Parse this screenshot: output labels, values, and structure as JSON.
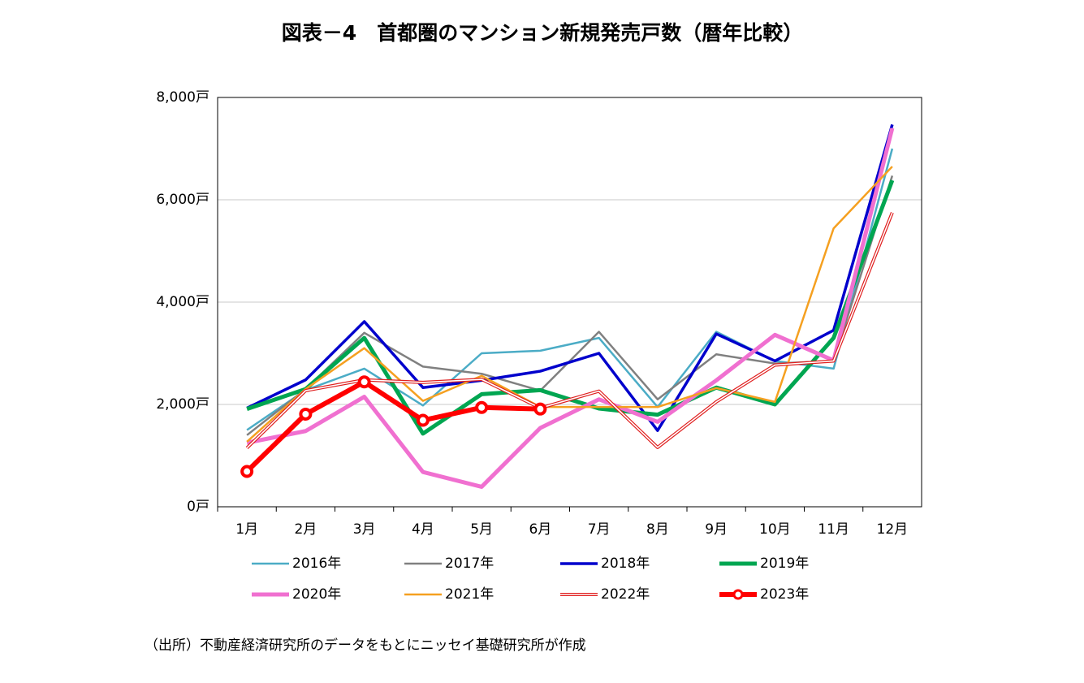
{
  "chart_data": {
    "type": "line",
    "title": "図表－4　首都圏のマンション新規発売戸数（暦年比較）",
    "note": "（出所）不動産経済研究所のデータをもとにニッセイ基礎研究所が作成",
    "categories": [
      "1月",
      "2月",
      "3月",
      "4月",
      "5月",
      "6月",
      "7月",
      "8月",
      "9月",
      "10月",
      "11月",
      "12月"
    ],
    "ylim": [
      0,
      8000
    ],
    "yticks": [
      {
        "value": 0,
        "label": "0戸"
      },
      {
        "value": 2000,
        "label": "2,000戸"
      },
      {
        "value": 4000,
        "label": "4,000戸"
      },
      {
        "value": 6000,
        "label": "6,000戸"
      },
      {
        "value": 8000,
        "label": "8,000戸"
      }
    ],
    "grid": true,
    "series": [
      {
        "name": "2016年",
        "color": "#4bacc6",
        "width": 2.5,
        "values": [
          1500,
          2280,
          2700,
          1980,
          3000,
          3050,
          3300,
          1950,
          3420,
          2850,
          2700,
          7000
        ]
      },
      {
        "name": "2017年",
        "color": "#808080",
        "width": 2.5,
        "values": [
          1400,
          2300,
          3400,
          2740,
          2600,
          2270,
          3420,
          2100,
          2980,
          2800,
          2850,
          6470
        ]
      },
      {
        "name": "2018年",
        "color": "#0000cc",
        "width": 3.5,
        "values": [
          1930,
          2480,
          3620,
          2330,
          2470,
          2650,
          3000,
          1490,
          3380,
          2850,
          3450,
          7470
        ]
      },
      {
        "name": "2019年",
        "color": "#00a651",
        "width": 5,
        "values": [
          1910,
          2300,
          3300,
          1430,
          2200,
          2280,
          1920,
          1800,
          2330,
          2000,
          3300,
          6380
        ]
      },
      {
        "name": "2020年",
        "color": "#f070d0",
        "width": 5,
        "values": [
          1250,
          1480,
          2150,
          680,
          390,
          1540,
          2100,
          1660,
          2470,
          3360,
          2860,
          7400
        ]
      },
      {
        "name": "2021年",
        "color": "#f5a020",
        "width": 2.5,
        "values": [
          1270,
          2300,
          3100,
          2070,
          2560,
          1950,
          1950,
          1950,
          2320,
          2050,
          5440,
          6650
        ]
      },
      {
        "name": "2022年",
        "color": "#e02020",
        "width": 4,
        "double": true,
        "values": [
          1150,
          2270,
          2480,
          2430,
          2490,
          1930,
          2260,
          1160,
          2050,
          2770,
          2850,
          5750
        ]
      },
      {
        "name": "2023年",
        "color": "#ff0000",
        "width": 6,
        "markers": true,
        "values": [
          690,
          1810,
          2440,
          1690,
          1940,
          1910,
          null,
          null,
          null,
          null,
          null,
          null
        ]
      }
    ]
  }
}
